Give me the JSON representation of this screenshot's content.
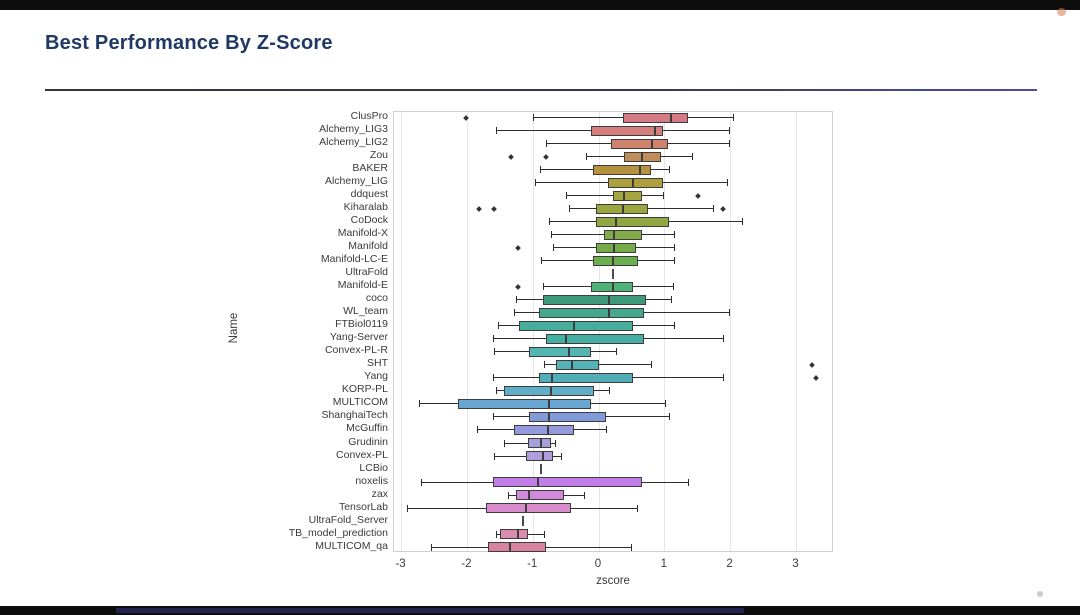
{
  "window": {
    "top_bar_color": "#0d0d0d",
    "bottom_bar_color": "#0d0d0d",
    "accent_segment_color": "#23234f",
    "record_dot_color": "rgba(212,122,86,0.55)"
  },
  "slide": {
    "title": "Best Performance By Z-Score",
    "title_color": "#1f3864"
  },
  "chart_data": {
    "type": "boxplot",
    "orientation": "horizontal",
    "title": "Best Performance By Z-Score",
    "xlabel": "zscore",
    "ylabel": "Name",
    "xlim": [
      -3.45,
      3.55
    ],
    "x_ticks": [
      -3,
      -2,
      -1,
      0,
      1,
      2,
      3
    ],
    "grid": "vertical-light",
    "rows": [
      {
        "name": "ClusPro",
        "lo": -1.0,
        "q1": 0.36,
        "med": 1.1,
        "q3": 1.36,
        "hi": 2.03,
        "outliers": [
          -2.02
        ],
        "color": "hsl(353,52%,66%)"
      },
      {
        "name": "Alchemy_LIG3",
        "lo": -1.56,
        "q1": -0.12,
        "med": 0.85,
        "q3": 0.98,
        "hi": 1.97,
        "outliers": [],
        "color": "hsl(2,52%,66%)"
      },
      {
        "name": "Alchemy_LIG2",
        "lo": -0.8,
        "q1": 0.18,
        "med": 0.8,
        "q3": 1.05,
        "hi": 1.97,
        "outliers": [],
        "color": "hsl(14,52%,62%)"
      },
      {
        "name": "Zou",
        "lo": -0.2,
        "q1": 0.38,
        "med": 0.66,
        "q3": 0.94,
        "hi": 1.42,
        "outliers": [
          -1.33,
          -0.8
        ],
        "color": "hsl(30,45%,55%)"
      },
      {
        "name": "BAKER",
        "lo": -0.9,
        "q1": -0.09,
        "med": 0.62,
        "q3": 0.79,
        "hi": 1.06,
        "outliers": [],
        "color": "hsl(42,48%,48%)"
      },
      {
        "name": "Alchemy_LIG",
        "lo": -0.98,
        "q1": 0.14,
        "med": 0.51,
        "q3": 0.98,
        "hi": 1.95,
        "outliers": [],
        "color": "hsl(52,48%,46%)"
      },
      {
        "name": "ddquest",
        "lo": -0.5,
        "q1": 0.21,
        "med": 0.38,
        "q3": 0.66,
        "hi": 0.98,
        "outliers": [
          1.5
        ],
        "color": "hsl(60,45%,45%)"
      },
      {
        "name": "Kiharalab",
        "lo": -0.45,
        "q1": -0.05,
        "med": 0.36,
        "q3": 0.74,
        "hi": 1.73,
        "outliers": [
          -1.83,
          -1.6,
          1.89
        ],
        "color": "hsl(66,45%,45%)"
      },
      {
        "name": "CoDock",
        "lo": -0.76,
        "q1": -0.05,
        "med": 0.26,
        "q3": 1.06,
        "hi": 2.18,
        "outliers": [],
        "color": "hsl(74,42%,46%)"
      },
      {
        "name": "Manifold-X",
        "lo": -0.73,
        "q1": 0.08,
        "med": 0.23,
        "q3": 0.66,
        "hi": 1.14,
        "outliers": [],
        "color": "hsl(84,40%,48%)"
      },
      {
        "name": "Manifold",
        "lo": -0.7,
        "q1": -0.05,
        "med": 0.23,
        "q3": 0.56,
        "hi": 1.14,
        "outliers": [
          -1.23
        ],
        "color": "hsl(92,40%,48%)"
      },
      {
        "name": "Manifold-LC-E",
        "lo": -0.88,
        "q1": -0.09,
        "med": 0.21,
        "q3": 0.59,
        "hi": 1.14,
        "outliers": [],
        "color": "hsl(103,38%,50%)"
      },
      {
        "name": "UltraFold",
        "lo": 0.21,
        "q1": 0.21,
        "med": 0.21,
        "q3": 0.21,
        "hi": 0.21,
        "outliers": [],
        "color": "hsl(118,35%,50%)"
      },
      {
        "name": "Manifold-E",
        "lo": -0.85,
        "q1": -0.12,
        "med": 0.21,
        "q3": 0.51,
        "hi": 1.12,
        "outliers": [
          -1.23
        ],
        "color": "hsl(145,40%,50%)"
      },
      {
        "name": "coco",
        "lo": -1.26,
        "q1": -0.85,
        "med": 0.15,
        "q3": 0.71,
        "hi": 1.1,
        "outliers": [],
        "color": "hsl(160,42%,42%)"
      },
      {
        "name": "WL_team",
        "lo": -1.29,
        "q1": -0.91,
        "med": 0.15,
        "q3": 0.68,
        "hi": 1.97,
        "outliers": [],
        "color": "hsl(165,42%,46%)"
      },
      {
        "name": "FTBiol0119",
        "lo": -1.53,
        "q1": -1.21,
        "med": -0.38,
        "q3": 0.52,
        "hi": 1.14,
        "outliers": [],
        "color": "hsl(170,42%,48%)"
      },
      {
        "name": "Yang-Server",
        "lo": -1.61,
        "q1": -0.8,
        "med": -0.5,
        "q3": 0.68,
        "hi": 1.89,
        "outliers": [],
        "color": "hsl(174,42%,48%)"
      },
      {
        "name": "Convex-PL-R",
        "lo": -1.59,
        "q1": -1.06,
        "med": -0.45,
        "q3": -0.12,
        "hi": 0.26,
        "outliers": [],
        "color": "hsl(178,40%,52%)"
      },
      {
        "name": "SHT",
        "lo": -0.83,
        "q1": -0.65,
        "med": -0.41,
        "q3": 0.0,
        "hi": 0.79,
        "outliers": [
          3.24
        ],
        "color": "hsl(182,40%,52%)"
      },
      {
        "name": "Yang",
        "lo": -1.61,
        "q1": -0.91,
        "med": -0.71,
        "q3": 0.52,
        "hi": 1.89,
        "outliers": [
          3.3
        ],
        "color": "hsl(186,42%,52%)"
      },
      {
        "name": "KORP-PL",
        "lo": -1.56,
        "q1": -1.45,
        "med": -0.73,
        "q3": -0.08,
        "hi": 0.15,
        "outliers": [],
        "color": "hsl(195,48%,58%)"
      },
      {
        "name": "MULTICOM",
        "lo": -2.74,
        "q1": -2.14,
        "med": -0.76,
        "q3": -0.12,
        "hi": 1.01,
        "outliers": [],
        "color": "hsl(205,55%,62%)"
      },
      {
        "name": "ShanghaiTech",
        "lo": -1.61,
        "q1": -1.06,
        "med": -0.76,
        "q3": 0.11,
        "hi": 1.06,
        "outliers": [],
        "color": "hsl(222,55%,68%)"
      },
      {
        "name": "McGuffin",
        "lo": -1.86,
        "q1": -1.29,
        "med": -0.77,
        "q3": -0.38,
        "hi": 0.11,
        "outliers": [],
        "color": "hsl(235,50%,72%)"
      },
      {
        "name": "Grudinin",
        "lo": -1.45,
        "q1": -1.08,
        "med": -0.88,
        "q3": -0.73,
        "hi": -0.67,
        "outliers": [],
        "color": "hsl(248,45%,74%)"
      },
      {
        "name": "Convex-PL",
        "lo": -1.59,
        "q1": -1.11,
        "med": -0.85,
        "q3": -0.7,
        "hi": -0.58,
        "outliers": [],
        "color": "hsl(255,45%,74%)"
      },
      {
        "name": "LCBio",
        "lo": -0.88,
        "q1": -0.88,
        "med": -0.88,
        "q3": -0.88,
        "hi": -0.88,
        "outliers": [],
        "color": "hsl(266,50%,70%)"
      },
      {
        "name": "noxelis",
        "lo": -2.7,
        "q1": -1.61,
        "med": -0.92,
        "q3": 0.66,
        "hi": 1.35,
        "outliers": [],
        "color": "hsl(278,70%,70%)"
      },
      {
        "name": "zax",
        "lo": -1.38,
        "q1": -1.26,
        "med": -1.06,
        "q3": -0.53,
        "hi": -0.23,
        "outliers": [],
        "color": "hsl(292,55%,70%)"
      },
      {
        "name": "TensorLab",
        "lo": -2.92,
        "q1": -1.71,
        "med": -1.11,
        "q3": -0.42,
        "hi": 0.58,
        "outliers": [],
        "color": "hsl(310,50%,70%)"
      },
      {
        "name": "UltraFold_Server",
        "lo": -1.15,
        "q1": -1.15,
        "med": -1.15,
        "q3": -1.15,
        "hi": -1.15,
        "outliers": [],
        "color": "hsl(322,50%,70%)"
      },
      {
        "name": "TB_model_prediction",
        "lo": -1.56,
        "q1": -1.51,
        "med": -1.23,
        "q3": -1.08,
        "hi": -0.83,
        "outliers": [],
        "color": "hsl(332,50%,70%)"
      },
      {
        "name": "MULTICOM_qa",
        "lo": -2.55,
        "q1": -1.68,
        "med": -1.36,
        "q3": -0.8,
        "hi": 0.48,
        "outliers": [],
        "color": "hsl(340,52%,68%)"
      }
    ]
  }
}
